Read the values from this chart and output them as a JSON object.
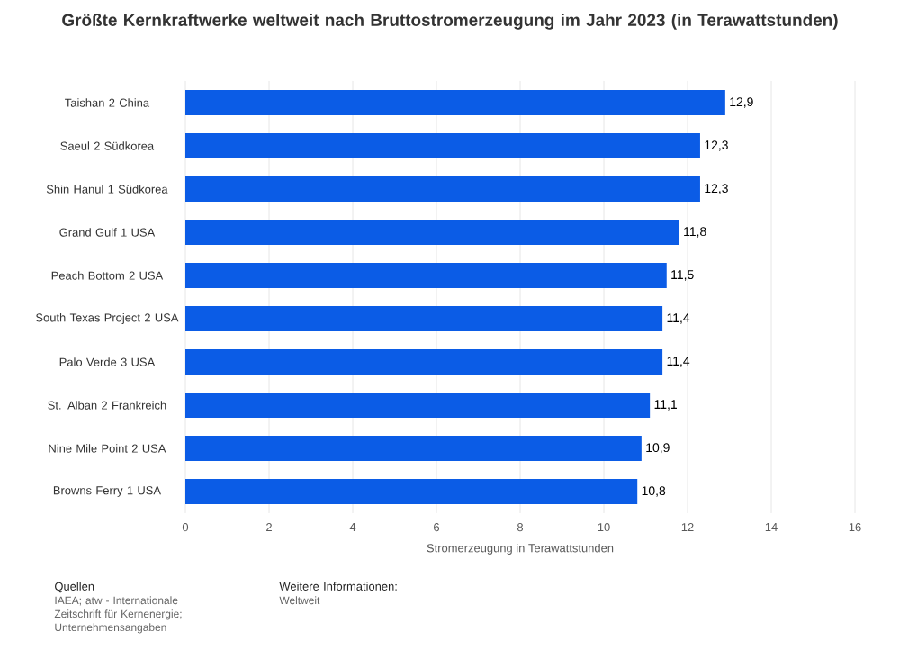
{
  "chart_data": {
    "type": "bar",
    "orientation": "horizontal",
    "title": "Größte Kernkraftwerke weltweit nach Bruttostromerzeugung im Jahr 2023 (in Terawattstunden)",
    "xlabel": "Stromerzeugung in Terawattstunden",
    "categories": [
      "Taishan 2 China",
      "Saeul 2 Südkorea",
      "Shin Hanul 1 Südkorea",
      "Grand Gulf 1 USA",
      "Peach Bottom 2 USA",
      "South Texas Project 2 USA",
      "Palo Verde 3 USA",
      "St. Alban 2 Frankreich",
      "Nine Mile Point 2 USA",
      "Browns Ferry 1 USA"
    ],
    "values": [
      12.9,
      12.3,
      12.3,
      11.8,
      11.5,
      11.4,
      11.4,
      11.1,
      10.9,
      10.8
    ],
    "value_labels": [
      "12,9",
      "12,3",
      "12,3",
      "11,8",
      "11,5",
      "11,4",
      "11,4",
      "11,1",
      "10,9",
      "10,8"
    ],
    "color": "#0b5ce6",
    "xlim": [
      0,
      16
    ],
    "xticks": [
      0,
      2,
      4,
      6,
      8,
      10,
      12,
      14,
      16
    ],
    "grid": "x",
    "annotations": [
      "Quellen",
      "IAEA; atw - Internationale Zeitschrift für Kernenergie; Unternehmensangaben",
      "Weitere Informationen:",
      "Weltweit"
    ]
  }
}
